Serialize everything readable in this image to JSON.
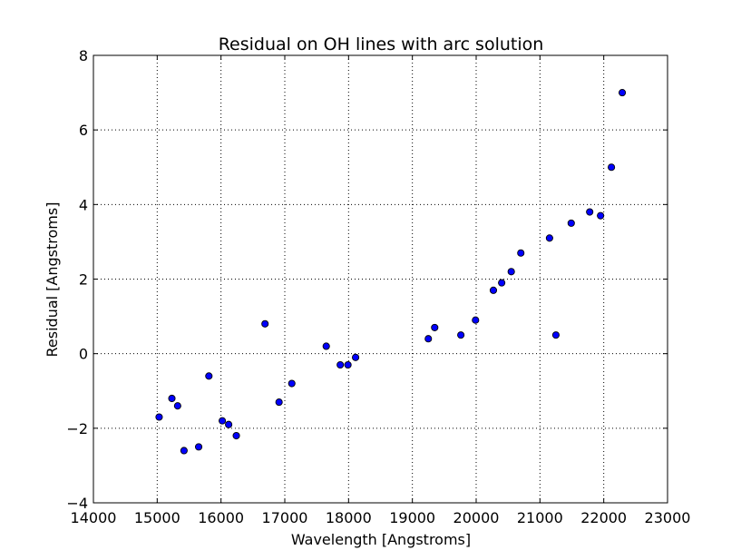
{
  "chart_data": {
    "type": "scatter",
    "title": "Residual on OH lines with arc solution",
    "xlabel": "Wavelength [Angstroms]",
    "ylabel": "Residual [Angstroms]",
    "xlim": [
      14000,
      23000
    ],
    "ylim": [
      -4,
      8
    ],
    "grid": true,
    "grid_style": "dotted",
    "x_ticks": [
      "14000",
      "15000",
      "16000",
      "17000",
      "18000",
      "19000",
      "20000",
      "21000",
      "22000",
      "23000"
    ],
    "y_ticks": [
      "−4",
      "−2",
      "0",
      "2",
      "4",
      "6",
      "8"
    ],
    "marker_color": "#0000ff",
    "series": [
      {
        "points": [
          {
            "x": 15030,
            "y": -1.7
          },
          {
            "x": 15230,
            "y": -1.2
          },
          {
            "x": 15320,
            "y": -1.4
          },
          {
            "x": 15420,
            "y": -2.6
          },
          {
            "x": 15650,
            "y": -2.5
          },
          {
            "x": 15810,
            "y": -0.6
          },
          {
            "x": 16020,
            "y": -1.8
          },
          {
            "x": 16120,
            "y": -1.9
          },
          {
            "x": 16240,
            "y": -2.2
          },
          {
            "x": 16690,
            "y": 0.8
          },
          {
            "x": 16910,
            "y": -1.3
          },
          {
            "x": 17110,
            "y": -0.8
          },
          {
            "x": 17650,
            "y": 0.2
          },
          {
            "x": 17870,
            "y": -0.3
          },
          {
            "x": 17990,
            "y": -0.3
          },
          {
            "x": 18110,
            "y": -0.1
          },
          {
            "x": 19250,
            "y": 0.4
          },
          {
            "x": 19350,
            "y": 0.7
          },
          {
            "x": 19760,
            "y": 0.5
          },
          {
            "x": 19990,
            "y": 0.9
          },
          {
            "x": 20270,
            "y": 1.7
          },
          {
            "x": 20400,
            "y": 1.9
          },
          {
            "x": 20550,
            "y": 2.2
          },
          {
            "x": 20700,
            "y": 2.7
          },
          {
            "x": 21150,
            "y": 3.1
          },
          {
            "x": 21250,
            "y": 0.5
          },
          {
            "x": 21490,
            "y": 3.5
          },
          {
            "x": 21780,
            "y": 3.8
          },
          {
            "x": 21950,
            "y": 3.7
          },
          {
            "x": 22120,
            "y": 5.0
          },
          {
            "x": 22290,
            "y": 7.0
          }
        ]
      }
    ]
  }
}
